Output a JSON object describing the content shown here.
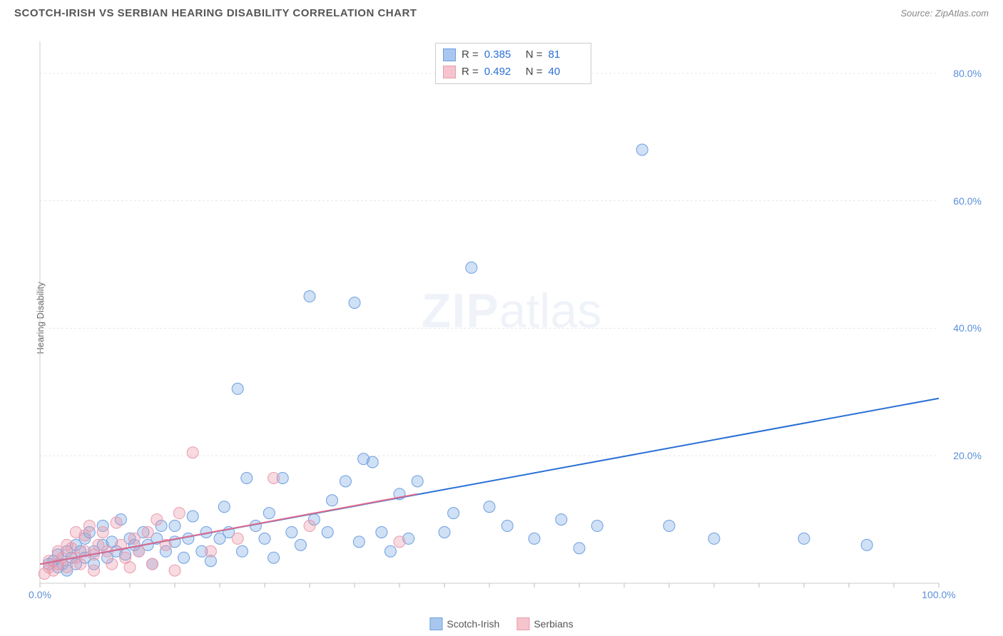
{
  "title": "SCOTCH-IRISH VS SERBIAN HEARING DISABILITY CORRELATION CHART",
  "source": "Source: ZipAtlas.com",
  "ylabel": "Hearing Disability",
  "watermark_zip": "ZIP",
  "watermark_atlas": "atlas",
  "chart": {
    "type": "scatter",
    "xlim": [
      0,
      100
    ],
    "ylim": [
      0,
      85
    ],
    "x_tick_major": [
      0,
      100
    ],
    "x_tick_major_labels": [
      "0.0%",
      "100.0%"
    ],
    "x_tick_minor_step": 5,
    "y_ticks": [
      20,
      40,
      60,
      80
    ],
    "y_tick_labels": [
      "20.0%",
      "40.0%",
      "60.0%",
      "80.0%"
    ],
    "background_color": "#ffffff",
    "grid_color": "#e8e8e8",
    "grid_dash": "3,3",
    "axis_color": "#cccccc",
    "tick_color": "#bbbbbb",
    "series": [
      {
        "name": "Scotch-Irish",
        "swatch_fill": "#a9c7ee",
        "swatch_stroke": "#6b9fe0",
        "marker_fill": "rgba(120,165,225,0.35)",
        "marker_stroke": "#6b9fe0",
        "marker_r": 8,
        "line_color": "#2a6fd6",
        "line_width": 2,
        "R_label": "R =",
        "R": "0.385",
        "N_label": "N =",
        "N": "81",
        "trend": {
          "x1": 0,
          "y1": 3,
          "x2": 100,
          "y2": 29
        },
        "points": [
          [
            1,
            3
          ],
          [
            1.5,
            3.5
          ],
          [
            2,
            2.5
          ],
          [
            2,
            4.5
          ],
          [
            2.5,
            3
          ],
          [
            3,
            5
          ],
          [
            3,
            2
          ],
          [
            3.5,
            4
          ],
          [
            4,
            6
          ],
          [
            4,
            3
          ],
          [
            4.5,
            5
          ],
          [
            5,
            7
          ],
          [
            5,
            4
          ],
          [
            5.5,
            8
          ],
          [
            6,
            5
          ],
          [
            6,
            3
          ],
          [
            7,
            6
          ],
          [
            7,
            9
          ],
          [
            7.5,
            4
          ],
          [
            8,
            6.5
          ],
          [
            8.5,
            5
          ],
          [
            9,
            10
          ],
          [
            9.5,
            4.5
          ],
          [
            10,
            7
          ],
          [
            10.5,
            6
          ],
          [
            11,
            5
          ],
          [
            11.5,
            8
          ],
          [
            12,
            6
          ],
          [
            12.5,
            3
          ],
          [
            13,
            7
          ],
          [
            13.5,
            9
          ],
          [
            14,
            5
          ],
          [
            15,
            6.5
          ],
          [
            15,
            9
          ],
          [
            16,
            4
          ],
          [
            16.5,
            7
          ],
          [
            17,
            10.5
          ],
          [
            18,
            5
          ],
          [
            18.5,
            8
          ],
          [
            19,
            3.5
          ],
          [
            20,
            7
          ],
          [
            20.5,
            12
          ],
          [
            21,
            8
          ],
          [
            22,
            30.5
          ],
          [
            22.5,
            5
          ],
          [
            23,
            16.5
          ],
          [
            24,
            9
          ],
          [
            25,
            7
          ],
          [
            25.5,
            11
          ],
          [
            26,
            4
          ],
          [
            27,
            16.5
          ],
          [
            28,
            8
          ],
          [
            29,
            6
          ],
          [
            30,
            45
          ],
          [
            30.5,
            10
          ],
          [
            32,
            8
          ],
          [
            32.5,
            13
          ],
          [
            34,
            16
          ],
          [
            35,
            44
          ],
          [
            35.5,
            6.5
          ],
          [
            36,
            19.5
          ],
          [
            37,
            19
          ],
          [
            38,
            8
          ],
          [
            39,
            5
          ],
          [
            40,
            14
          ],
          [
            41,
            7
          ],
          [
            42,
            16
          ],
          [
            45,
            8
          ],
          [
            46,
            11
          ],
          [
            48,
            49.5
          ],
          [
            50,
            12
          ],
          [
            52,
            9
          ],
          [
            55,
            7
          ],
          [
            58,
            10
          ],
          [
            60,
            5.5
          ],
          [
            62,
            9
          ],
          [
            67,
            68
          ],
          [
            70,
            9
          ],
          [
            75,
            7
          ],
          [
            85,
            7
          ],
          [
            92,
            6
          ]
        ]
      },
      {
        "name": "Serbians",
        "swatch_fill": "#f5c4cd",
        "swatch_stroke": "#e89cae",
        "marker_fill": "rgba(235,150,170,0.35)",
        "marker_stroke": "#e89cae",
        "marker_r": 8,
        "line_color": "#e06a8a",
        "line_width": 2,
        "R_label": "R =",
        "R": "0.492",
        "N_label": "N =",
        "N": "40",
        "trend": {
          "x1": 0,
          "y1": 3,
          "x2": 42,
          "y2": 14
        },
        "points": [
          [
            0.5,
            1.5
          ],
          [
            1,
            2.5
          ],
          [
            1,
            3.5
          ],
          [
            1.5,
            2
          ],
          [
            2,
            5
          ],
          [
            2,
            3
          ],
          [
            2.5,
            4
          ],
          [
            3,
            2.5
          ],
          [
            3,
            6
          ],
          [
            3.5,
            5.5
          ],
          [
            4,
            4
          ],
          [
            4,
            8
          ],
          [
            4.5,
            3
          ],
          [
            5,
            7.5
          ],
          [
            5,
            5
          ],
          [
            5.5,
            9
          ],
          [
            6,
            4.5
          ],
          [
            6,
            2
          ],
          [
            6.5,
            6
          ],
          [
            7,
            8
          ],
          [
            7.5,
            5
          ],
          [
            8,
            3
          ],
          [
            8.5,
            9.5
          ],
          [
            9,
            6
          ],
          [
            9.5,
            4
          ],
          [
            10,
            2.5
          ],
          [
            10.5,
            7
          ],
          [
            11,
            5
          ],
          [
            12,
            8
          ],
          [
            12.5,
            3
          ],
          [
            13,
            10
          ],
          [
            14,
            6
          ],
          [
            15,
            2
          ],
          [
            15.5,
            11
          ],
          [
            17,
            20.5
          ],
          [
            19,
            5
          ],
          [
            22,
            7
          ],
          [
            26,
            16.5
          ],
          [
            30,
            9
          ],
          [
            40,
            6.5
          ]
        ]
      }
    ]
  },
  "legend_bottom": [
    {
      "label": "Scotch-Irish",
      "fill": "#a9c7ee",
      "stroke": "#6b9fe0"
    },
    {
      "label": "Serbians",
      "fill": "#f5c4cd",
      "stroke": "#e89cae"
    }
  ]
}
